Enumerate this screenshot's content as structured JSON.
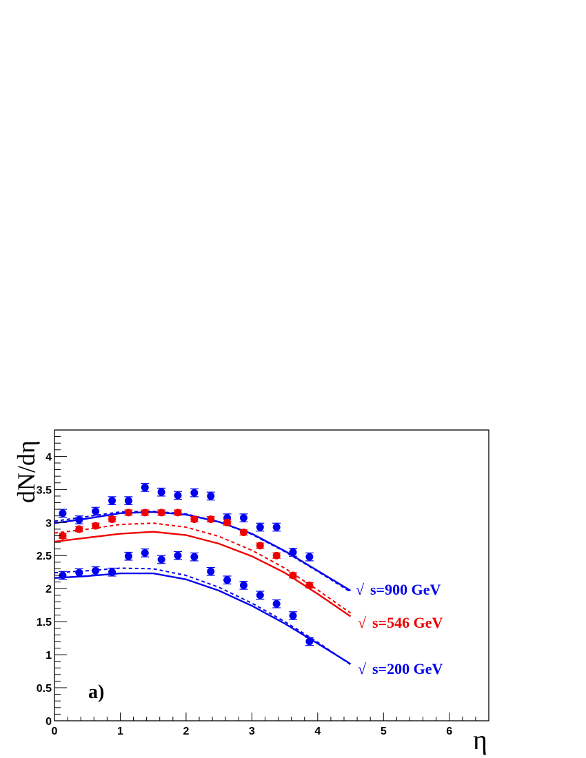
{
  "chart_data": {
    "type": "scatter",
    "title": "",
    "panel_label": "a)",
    "xlabel": "η",
    "ylabel": "dN/dη",
    "xlim": [
      0,
      6.6
    ],
    "ylim": [
      0,
      4.4
    ],
    "x_ticks": [
      0,
      1,
      2,
      3,
      4,
      5,
      6
    ],
    "y_ticks": [
      0,
      0.5,
      1,
      1.5,
      2,
      2.5,
      3,
      3.5,
      4
    ],
    "x_tick_labels": [
      "0",
      "1",
      "2",
      "3",
      "4",
      "5",
      "6"
    ],
    "y_tick_labels": [
      "0",
      "0.5",
      "1",
      "1.5",
      "2",
      "2.5",
      "3",
      "3.5",
      "4"
    ],
    "grid": false,
    "colors": {
      "blue": "#0000ee",
      "red": "#ee0000"
    },
    "series": [
      {
        "name": "√s=900 GeV",
        "sqrt_symbol": "√",
        "energy_text": "s=900 GeV",
        "color": "#0000ee",
        "points": {
          "x": [
            0.125,
            0.375,
            0.625,
            0.875,
            1.125,
            1.375,
            1.625,
            1.875,
            2.125,
            2.375,
            2.625,
            2.875,
            3.125,
            3.375,
            3.625,
            3.875
          ],
          "y": [
            3.14,
            3.04,
            3.17,
            3.33,
            3.33,
            3.53,
            3.46,
            3.41,
            3.45,
            3.4,
            3.07,
            3.07,
            2.93,
            2.93,
            2.55,
            2.48
          ],
          "err": [
            0.06,
            0.06,
            0.06,
            0.06,
            0.06,
            0.06,
            0.06,
            0.06,
            0.06,
            0.06,
            0.06,
            0.06,
            0.06,
            0.06,
            0.06,
            0.06
          ]
        },
        "solid_curve": {
          "x": [
            0,
            0.5,
            1.0,
            1.5,
            2.0,
            2.5,
            3.0,
            3.5,
            4.0,
            4.5
          ],
          "y": [
            2.99,
            3.06,
            3.14,
            3.16,
            3.12,
            3.01,
            2.83,
            2.57,
            2.27,
            1.97
          ]
        },
        "dashed_curve": {
          "x": [
            0,
            0.5,
            1.0,
            1.5,
            2.0,
            2.5,
            3.0,
            3.5,
            4.0,
            4.5
          ],
          "y": [
            3.02,
            3.09,
            3.16,
            3.17,
            3.13,
            3.01,
            2.82,
            2.56,
            2.26,
            1.95
          ]
        }
      },
      {
        "name": "√s=546 GeV",
        "sqrt_symbol": "√",
        "energy_text": "s=546 GeV",
        "color": "#ee0000",
        "points": {
          "x": [
            0.125,
            0.375,
            0.625,
            0.875,
            1.125,
            1.375,
            1.625,
            1.875,
            2.125,
            2.375,
            2.625,
            2.875,
            3.125,
            3.375,
            3.625,
            3.875
          ],
          "y": [
            2.8,
            2.9,
            2.95,
            3.05,
            3.15,
            3.15,
            3.15,
            3.15,
            3.05,
            3.05,
            3.0,
            2.85,
            2.65,
            2.5,
            2.2,
            2.05
          ],
          "err": [
            0.04,
            0.04,
            0.04,
            0.04,
            0.04,
            0.04,
            0.04,
            0.04,
            0.04,
            0.04,
            0.04,
            0.04,
            0.04,
            0.04,
            0.04,
            0.04
          ]
        },
        "solid_curve": {
          "x": [
            0,
            0.5,
            1.0,
            1.5,
            2.0,
            2.5,
            3.0,
            3.5,
            4.0,
            4.5
          ],
          "y": [
            2.71,
            2.77,
            2.83,
            2.86,
            2.81,
            2.68,
            2.49,
            2.24,
            1.92,
            1.58
          ]
        },
        "dashed_curve": {
          "x": [
            0,
            0.5,
            1.0,
            1.5,
            2.0,
            2.5,
            3.0,
            3.5,
            4.0,
            4.5
          ],
          "y": [
            2.84,
            2.9,
            2.97,
            2.99,
            2.93,
            2.79,
            2.58,
            2.31,
            1.98,
            1.63
          ]
        }
      },
      {
        "name": "√s=200 GeV",
        "sqrt_symbol": "√",
        "energy_text": "s=200 GeV",
        "color": "#0000ee",
        "points": {
          "x": [
            0.125,
            0.375,
            0.625,
            0.875,
            1.125,
            1.375,
            1.625,
            1.875,
            2.125,
            2.375,
            2.625,
            2.875,
            3.125,
            3.375,
            3.625,
            3.875
          ],
          "y": [
            2.2,
            2.24,
            2.27,
            2.25,
            2.49,
            2.54,
            2.44,
            2.5,
            2.48,
            2.26,
            2.13,
            2.05,
            1.9,
            1.77,
            1.59,
            1.2
          ],
          "err": [
            0.06,
            0.06,
            0.06,
            0.06,
            0.06,
            0.06,
            0.06,
            0.06,
            0.06,
            0.06,
            0.06,
            0.06,
            0.06,
            0.06,
            0.06,
            0.06
          ]
        },
        "solid_curve": {
          "x": [
            0,
            0.5,
            1.0,
            1.5,
            2.0,
            2.5,
            3.0,
            3.5,
            4.0,
            4.5
          ],
          "y": [
            2.16,
            2.19,
            2.23,
            2.23,
            2.14,
            1.97,
            1.74,
            1.47,
            1.17,
            0.86
          ]
        },
        "dashed_curve": {
          "x": [
            0,
            0.5,
            1.0,
            1.5,
            2.0,
            2.5,
            3.0,
            3.5,
            4.0,
            4.5
          ],
          "y": [
            2.24,
            2.27,
            2.31,
            2.3,
            2.2,
            2.02,
            1.78,
            1.5,
            1.19,
            0.85
          ]
        }
      }
    ]
  }
}
